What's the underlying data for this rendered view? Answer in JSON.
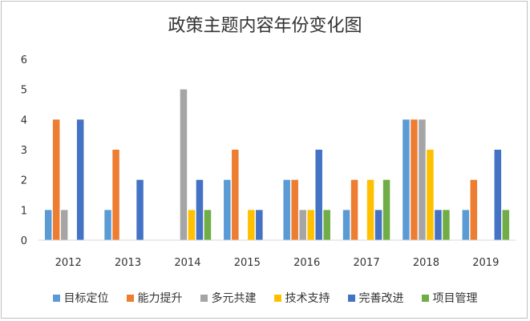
{
  "chart_data": {
    "type": "bar",
    "title": "政策主题内容年份变化图",
    "categories": [
      "2012",
      "2013",
      "2014",
      "2015",
      "2016",
      "2017",
      "2018",
      "2019"
    ],
    "ylim": [
      0,
      6
    ],
    "yticks": [
      0,
      1,
      2,
      3,
      4,
      5,
      6
    ],
    "grid": false,
    "legend_position": "bottom",
    "series": [
      {
        "name": "目标定位",
        "color": "#5b9bd5",
        "values": [
          1,
          1,
          0,
          2,
          2,
          1,
          4,
          1
        ]
      },
      {
        "name": "能力提升",
        "color": "#ed7d31",
        "values": [
          4,
          3,
          0,
          3,
          2,
          2,
          4,
          2
        ]
      },
      {
        "name": "多元共建",
        "color": "#a5a5a5",
        "values": [
          1,
          0,
          5,
          0,
          1,
          0,
          4,
          0
        ]
      },
      {
        "name": "技术支持",
        "color": "#ffc000",
        "values": [
          0,
          0,
          1,
          1,
          1,
          2,
          3,
          0
        ]
      },
      {
        "name": "完善改进",
        "color": "#4472c4",
        "values": [
          4,
          2,
          2,
          1,
          3,
          1,
          1,
          3
        ]
      },
      {
        "name": "项目管理",
        "color": "#70ad47",
        "values": [
          0,
          0,
          1,
          0,
          1,
          2,
          1,
          1
        ]
      }
    ]
  }
}
